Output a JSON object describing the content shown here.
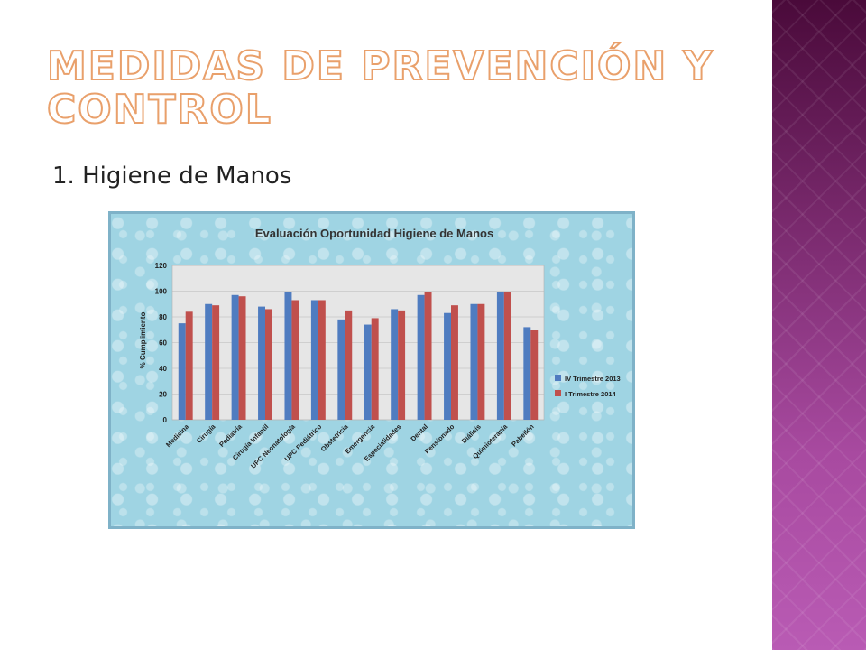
{
  "slide": {
    "title": "Medidas de prevención y control",
    "subtitle": "1. Higiene de Manos"
  },
  "colors": {
    "series1": "#4f7cc0",
    "series2": "#c0504d",
    "title_stroke": "#e9a06b",
    "side_band": "#8b3a80"
  },
  "chart_data": {
    "type": "bar",
    "title": "Evaluación Oportunidad Higiene de Manos",
    "xlabel": "",
    "ylabel": "% Cumplimiento",
    "ylim": [
      0,
      120
    ],
    "yticks": [
      0,
      20,
      40,
      60,
      80,
      100,
      120
    ],
    "grid": true,
    "legend_position": "right",
    "categories": [
      "Medicina",
      "Cirugía",
      "Pediatría",
      "Cirugía Infantil",
      "UPC Neonatología",
      "UPC Pediátrico",
      "Obstetricia",
      "Emergencia",
      "Especialidades",
      "Dental",
      "Pensionado",
      "Diálisis",
      "Quimioterapia",
      "Pabellón"
    ],
    "series": [
      {
        "name": "IV Trimestre 2013",
        "values": [
          75,
          90,
          97,
          88,
          99,
          93,
          78,
          74,
          86,
          97,
          83,
          90,
          99,
          72
        ]
      },
      {
        "name": "I Trimestre 2014",
        "values": [
          84,
          89,
          96,
          86,
          93,
          93,
          85,
          79,
          85,
          99,
          89,
          90,
          99,
          70
        ]
      }
    ]
  }
}
